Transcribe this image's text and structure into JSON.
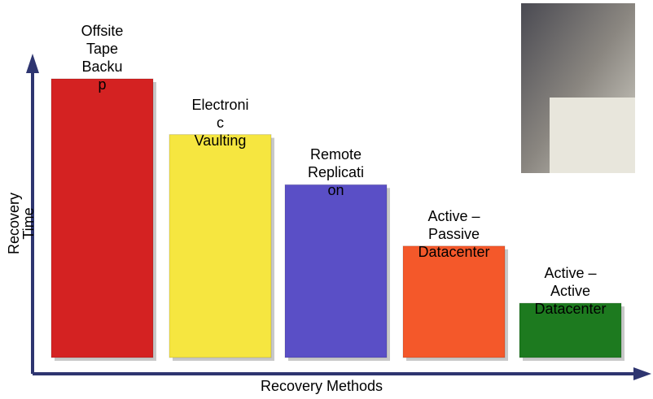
{
  "chart_data": {
    "type": "bar",
    "categories": [
      "Offsite\nTape\nBacku\np",
      "Electroni\nc\nVaulting",
      "Remote\nReplicati\non",
      "Active –\nPassive\nDatacenter",
      "Active –\nActive\nDatacenter"
    ],
    "values": [
      100,
      80,
      62,
      40,
      19.5
    ],
    "colors": [
      "#d42222",
      "#f6e640",
      "#5a4fc6",
      "#f4582a",
      "#1d7a1f"
    ],
    "ylim": [
      0,
      100
    ],
    "y_label": "Recovery\nTime",
    "x_label": "Recovery Methods"
  }
}
